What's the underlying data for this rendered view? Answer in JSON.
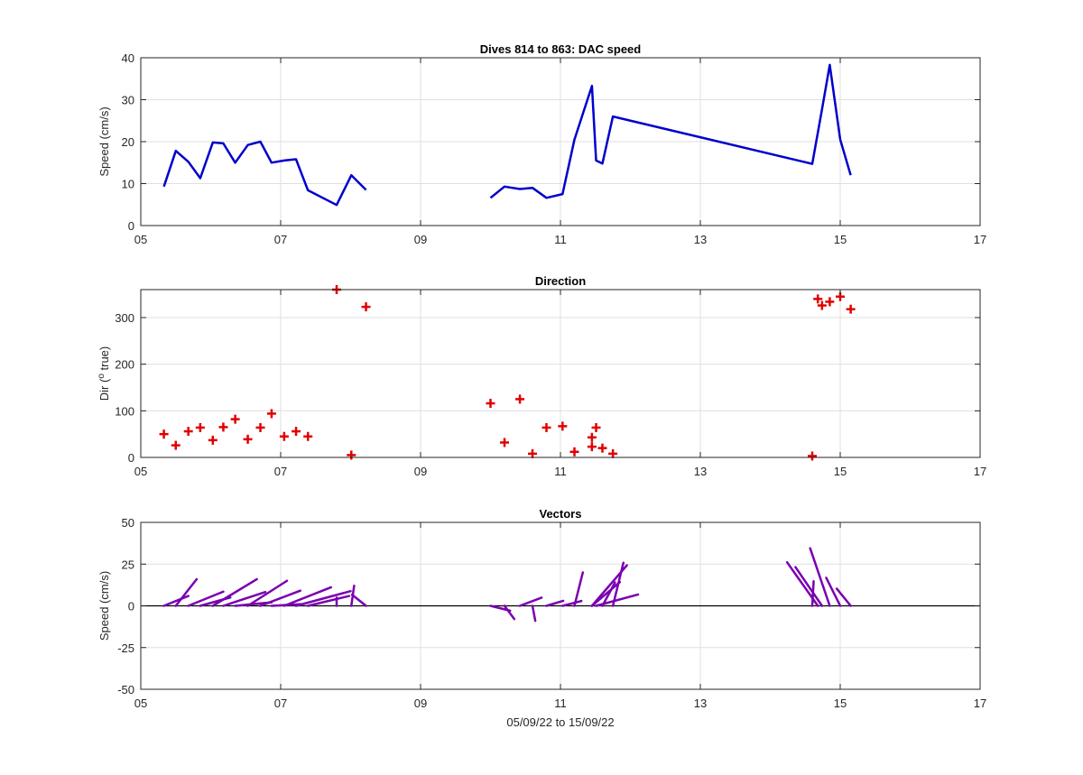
{
  "chart_data": [
    {
      "type": "line",
      "title": "Dives 814 to 863: DAC speed",
      "ylabel": "Speed (cm/s)",
      "xlabel": "",
      "xlim": [
        5,
        17
      ],
      "ylim": [
        0,
        40
      ],
      "xticks": [
        5,
        7,
        9,
        11,
        13,
        15,
        17
      ],
      "xtick_labels": [
        "05",
        "07",
        "09",
        "11",
        "13",
        "15",
        "17"
      ],
      "yticks": [
        0,
        10,
        20,
        30,
        40
      ],
      "ytick_labels": [
        "0",
        "10",
        "20",
        "30",
        "40"
      ],
      "grid": true,
      "color": "#0000cc",
      "segments": [
        {
          "x": [
            5.33,
            5.5,
            5.68,
            5.85,
            6.03,
            6.18,
            6.35,
            6.53,
            6.71,
            6.87,
            7.05,
            7.22,
            7.39,
            7.8,
            8.01,
            8.22
          ],
          "y": [
            9.3,
            17.8,
            15.2,
            11.3,
            19.8,
            19.6,
            15.0,
            19.2,
            20.0,
            15.0,
            15.5,
            15.8,
            8.4,
            4.9,
            12.0,
            8.5
          ]
        },
        {
          "x": [
            10.0,
            10.2,
            10.42,
            10.6,
            10.8,
            11.03,
            11.2,
            11.45,
            11.51,
            11.6,
            11.75,
            14.6,
            14.74,
            14.85,
            15.0,
            15.15
          ],
          "y": [
            6.6,
            9.3,
            8.7,
            9.0,
            6.6,
            7.5,
            20.5,
            33.3,
            15.5,
            14.8,
            26.0,
            14.7,
            27.8,
            38.3,
            20.5,
            12.0
          ]
        }
      ]
    },
    {
      "type": "scatter",
      "title": "Direction",
      "ylabel": "Dir (",
      "ylabel_sup": "o",
      "ylabel_end": " true)",
      "xlabel": "",
      "xlim": [
        5,
        17
      ],
      "ylim": [
        0,
        360
      ],
      "xticks": [
        5,
        7,
        9,
        11,
        13,
        15,
        17
      ],
      "xtick_labels": [
        "05",
        "07",
        "09",
        "11",
        "13",
        "15",
        "17"
      ],
      "yticks": [
        0,
        100,
        200,
        300
      ],
      "ytick_labels": [
        "0",
        "100",
        "200",
        "300"
      ],
      "grid": true,
      "marker": "+",
      "color": "#e00000",
      "x": [
        5.33,
        5.5,
        5.68,
        5.85,
        6.03,
        6.18,
        6.35,
        6.53,
        6.71,
        6.87,
        7.05,
        7.22,
        7.39,
        7.8,
        8.01,
        8.22,
        10.0,
        10.2,
        10.42,
        10.6,
        10.8,
        11.03,
        11.2,
        11.45,
        11.45,
        11.51,
        11.6,
        11.75,
        14.6,
        14.68,
        14.74,
        14.85,
        15.0,
        15.15
      ],
      "y": [
        50,
        26,
        56,
        64,
        37,
        65,
        82,
        39,
        64,
        94,
        45,
        56,
        45,
        360,
        5,
        323,
        116,
        32,
        125,
        8,
        64,
        67,
        12,
        43,
        23,
        64,
        20,
        8,
        3,
        340,
        326,
        334,
        345,
        318
      ]
    },
    {
      "type": "quiver",
      "title": "Vectors",
      "ylabel": "Speed (cm/s)",
      "xlabel": "05/09/22 to 15/09/22",
      "xlim": [
        5,
        17
      ],
      "ylim": [
        -50,
        50
      ],
      "xticks": [
        5,
        7,
        9,
        11,
        13,
        15,
        17
      ],
      "xtick_labels": [
        "05",
        "07",
        "09",
        "11",
        "13",
        "15",
        "17"
      ],
      "yticks": [
        -50,
        -25,
        0,
        25,
        50
      ],
      "ytick_labels": [
        "-50",
        "-25",
        "0",
        "25",
        "50"
      ],
      "grid": true,
      "baseline": 0,
      "color": "#7a00b0",
      "x": [
        5.33,
        5.5,
        5.68,
        5.85,
        6.03,
        6.18,
        6.35,
        6.53,
        6.71,
        6.87,
        7.05,
        7.22,
        7.39,
        7.8,
        8.01,
        8.22,
        10.0,
        10.2,
        10.42,
        10.6,
        10.8,
        11.03,
        11.2,
        11.45,
        11.45,
        11.51,
        11.6,
        11.75,
        14.6,
        14.68,
        14.74,
        14.85,
        15.0,
        15.15
      ],
      "u": [
        0.35,
        0.3,
        0.5,
        0.43,
        0.63,
        0.6,
        0.52,
        0.56,
        0.57,
        0.42,
        0.67,
        0.78,
        0.59,
        0.0,
        0.04,
        -0.2,
        0.28,
        0.14,
        0.31,
        0.04,
        0.24,
        0.27,
        0.12,
        0.5,
        0.4,
        0.6,
        0.18,
        0.15,
        0.02,
        -0.44,
        -0.38,
        -0.28,
        -0.2,
        -0.2
      ],
      "v": [
        5.9,
        16.0,
        8.5,
        5.0,
        16.0,
        8.3,
        2.1,
        15.0,
        9.1,
        1.0,
        11.1,
        8.8,
        5.9,
        4.9,
        12.0,
        6.7,
        -2.9,
        -7.9,
        4.9,
        -9.0,
        3.0,
        2.9,
        20.0,
        24.3,
        14.2,
        6.8,
        14.0,
        25.8,
        14.7,
        26.1,
        23.2,
        34.5,
        16.8,
        10.3
      ]
    }
  ]
}
